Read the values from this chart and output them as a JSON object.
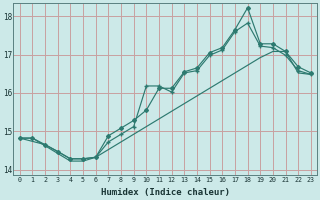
{
  "xlabel": "Humidex (Indice chaleur)",
  "xlim": [
    -0.5,
    23.5
  ],
  "ylim": [
    13.85,
    18.35
  ],
  "yticks": [
    14,
    15,
    16,
    17,
    18
  ],
  "xticks": [
    0,
    1,
    2,
    3,
    4,
    5,
    6,
    7,
    8,
    9,
    10,
    11,
    12,
    13,
    14,
    15,
    16,
    17,
    18,
    19,
    20,
    21,
    22,
    23
  ],
  "bg_color": "#cce9e8",
  "grid_color": "#c8a0a0",
  "line_color": "#2d7a70",
  "line1_x": [
    0,
    1,
    2,
    3,
    4,
    5,
    6,
    7,
    8,
    9,
    10,
    11,
    12,
    13,
    14,
    15,
    16,
    17,
    18,
    19,
    20,
    21,
    22,
    23
  ],
  "line1_y": [
    14.82,
    14.82,
    14.65,
    14.47,
    14.28,
    14.28,
    14.32,
    14.88,
    15.08,
    15.28,
    15.55,
    16.12,
    16.12,
    16.55,
    16.65,
    17.05,
    17.18,
    17.65,
    18.22,
    17.28,
    17.28,
    17.08,
    16.68,
    16.52
  ],
  "line2_x": [
    0,
    2,
    3,
    4,
    5,
    6,
    7,
    8,
    9,
    10,
    11,
    12,
    13,
    14,
    15,
    16,
    17,
    18,
    19,
    20,
    21,
    22,
    23
  ],
  "line2_y": [
    14.82,
    14.65,
    14.47,
    14.28,
    14.28,
    14.32,
    14.72,
    14.92,
    15.12,
    16.18,
    16.18,
    16.02,
    16.52,
    16.58,
    16.98,
    17.12,
    17.6,
    17.82,
    17.22,
    17.18,
    16.98,
    16.58,
    16.48
  ],
  "line3_x": [
    0,
    1,
    2,
    3,
    4,
    5,
    6,
    7,
    8,
    9,
    10,
    11,
    12,
    13,
    14,
    15,
    16,
    17,
    18,
    19,
    20,
    21,
    22,
    23
  ],
  "line3_y": [
    14.82,
    14.82,
    14.62,
    14.42,
    14.22,
    14.22,
    14.32,
    14.52,
    14.72,
    14.92,
    15.12,
    15.32,
    15.52,
    15.72,
    15.92,
    16.12,
    16.32,
    16.52,
    16.72,
    16.92,
    17.08,
    17.08,
    16.52,
    16.48
  ]
}
